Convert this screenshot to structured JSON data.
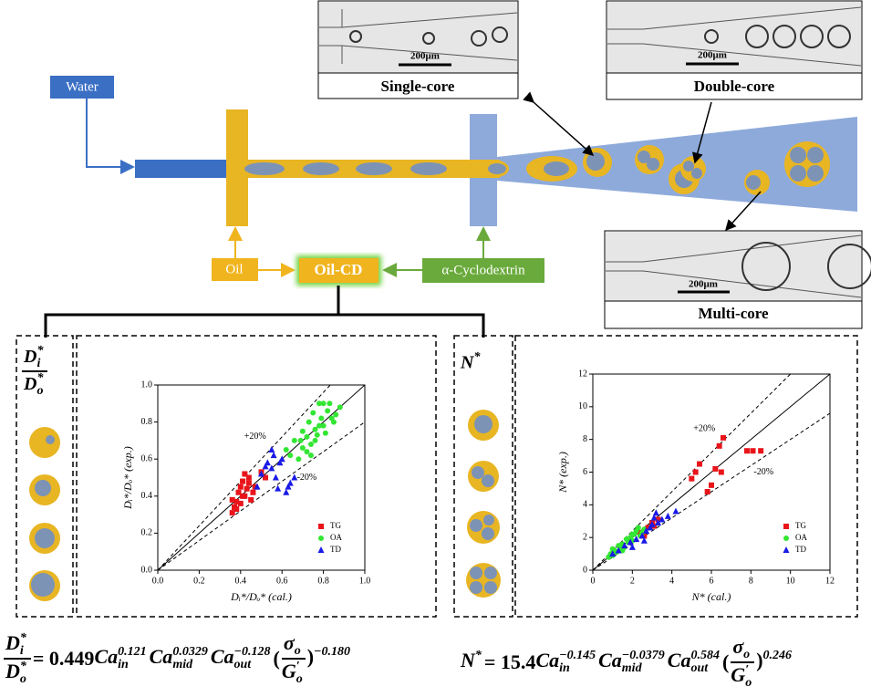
{
  "labels": {
    "water": "Water",
    "oil": "Oil",
    "oil_cd": "Oil-CD",
    "cyclodextrin": "α-Cyclodextrin"
  },
  "insets": [
    {
      "title": "Single-core",
      "scale": "200μm"
    },
    {
      "title": "Double-core",
      "scale": "200μm"
    },
    {
      "title": "Multi-core",
      "scale": "200μm"
    }
  ],
  "side_labels": [
    [
      {
        "num": {
          "base": "D",
          "sup": "*",
          "sub": "i"
        },
        "den": {
          "base": "D",
          "sup": "*",
          "sub": "o"
        }
      }
    ],
    [
      {
        "base": "N",
        "sup": "*"
      }
    ]
  ],
  "equations": [
    [
      {
        "num": {
          "base": "D",
          "sup": "*",
          "sub": "i"
        },
        "den": {
          "base": "D",
          "sup": "*",
          "sub": "o"
        }
      },
      {
        "text": "= 0.449"
      },
      {
        "base": "Ca",
        "sup": "0.121",
        "sub": "in"
      },
      {
        "base": "Ca",
        "sup": "0.0329",
        "sub": "mid"
      },
      {
        "base": "Ca",
        "sup": "−0.128",
        "sub": "out"
      },
      {
        "text": "("
      },
      {
        "num": {
          "base": "σ",
          "sub": "o"
        },
        "den": {
          "base": "G",
          "sup": "′",
          "sub": "o"
        }
      },
      {
        "base": ")",
        "sup": "−0.180"
      }
    ],
    [
      {
        "base": "N",
        "sup": "*"
      },
      {
        "text": "= 15.4"
      },
      {
        "base": "Ca",
        "sup": "−0.145",
        "sub": "in"
      },
      {
        "base": "Ca",
        "sup": "−0.0379",
        "sub": "mid"
      },
      {
        "base": "Ca",
        "sup": "0.584",
        "sub": "out"
      },
      {
        "text": "("
      },
      {
        "num": {
          "base": "σ",
          "sub": "o"
        },
        "den": {
          "base": "G",
          "sup": "′",
          "sub": "o"
        }
      },
      {
        "base": ")",
        "sup": "0.246"
      }
    ]
  ],
  "chart_data": [
    {
      "type": "scatter",
      "xlabel": "Dᵢ*/Dₒ* (cal.)",
      "ylabel": "Dᵢ*/Dₒ* (exp.)",
      "xlim": [
        0,
        1
      ],
      "ylim": [
        0,
        1
      ],
      "xticks": [
        {
          "value": 0,
          "label": "0.0"
        },
        {
          "value": 0.2,
          "label": "0.2"
        },
        {
          "value": 0.4,
          "label": "0.4"
        },
        {
          "value": 0.6,
          "label": "0.6"
        },
        {
          "value": 0.8,
          "label": "0.8"
        },
        {
          "value": 1,
          "label": "1.0"
        }
      ],
      "yticks": [
        {
          "value": 0,
          "label": "0.0"
        },
        {
          "value": 0.2,
          "label": "0.2"
        },
        {
          "value": 0.4,
          "label": "0.4"
        },
        {
          "value": 0.6,
          "label": "0.6"
        },
        {
          "value": 0.8,
          "label": "0.8"
        },
        {
          "value": 1,
          "label": "1.0"
        }
      ],
      "annotations": [
        "+20%",
        "-20%"
      ],
      "legend": "lower right",
      "series": [
        {
          "name": "TG",
          "color": "#e8141a",
          "marker": "square",
          "x": [
            0.36,
            0.37,
            0.38,
            0.39,
            0.4,
            0.4,
            0.41,
            0.42,
            0.43,
            0.44,
            0.45,
            0.46,
            0.38,
            0.42,
            0.47,
            0.5,
            0.52,
            0.36,
            0.44,
            0.41
          ],
          "values": [
            0.31,
            0.34,
            0.37,
            0.42,
            0.45,
            0.36,
            0.48,
            0.4,
            0.44,
            0.5,
            0.38,
            0.42,
            0.33,
            0.52,
            0.45,
            0.53,
            0.5,
            0.38,
            0.47,
            0.4
          ]
        },
        {
          "name": "OA",
          "color": "#33e633",
          "marker": "circle",
          "x": [
            0.62,
            0.64,
            0.66,
            0.68,
            0.7,
            0.7,
            0.72,
            0.73,
            0.74,
            0.75,
            0.76,
            0.77,
            0.78,
            0.79,
            0.8,
            0.8,
            0.82,
            0.83,
            0.84,
            0.85,
            0.86,
            0.88,
            0.72,
            0.76,
            0.81,
            0.69,
            0.78,
            0.74
          ],
          "values": [
            0.65,
            0.62,
            0.7,
            0.6,
            0.75,
            0.66,
            0.72,
            0.8,
            0.68,
            0.85,
            0.76,
            0.73,
            0.9,
            0.82,
            0.78,
            0.9,
            0.86,
            0.9,
            0.82,
            0.8,
            0.84,
            0.88,
            0.64,
            0.7,
            0.74,
            0.7,
            0.78,
            0.62
          ]
        },
        {
          "name": "TD",
          "color": "#1a1ae6",
          "marker": "triangle",
          "x": [
            0.48,
            0.5,
            0.52,
            0.53,
            0.55,
            0.56,
            0.57,
            0.58,
            0.6,
            0.62,
            0.64,
            0.66,
            0.55,
            0.59,
            0.63
          ],
          "values": [
            0.45,
            0.52,
            0.56,
            0.58,
            0.55,
            0.62,
            0.5,
            0.44,
            0.6,
            0.42,
            0.47,
            0.5,
            0.65,
            0.58,
            0.45
          ]
        }
      ]
    },
    {
      "type": "scatter",
      "xlabel": "N* (cal.)",
      "ylabel": "N* (exp.)",
      "xlim": [
        0,
        12
      ],
      "ylim": [
        0,
        12
      ],
      "xticks": [
        0,
        2,
        4,
        6,
        8,
        10,
        12
      ],
      "yticks": [
        0,
        2,
        4,
        6,
        8,
        10,
        12
      ],
      "annotations": [
        "+20%",
        "-20%"
      ],
      "legend": "lower right",
      "series": [
        {
          "name": "TG",
          "color": "#e8141a",
          "marker": "square",
          "x": [
            2.4,
            2.8,
            3.0,
            3.3,
            5.0,
            5.2,
            5.4,
            5.8,
            6.0,
            6.2,
            6.4,
            6.6,
            6.5,
            7.8,
            8.1,
            8.5,
            2.6,
            3.1
          ],
          "values": [
            2.3,
            2.6,
            2.9,
            3.1,
            5.6,
            6.0,
            6.5,
            4.8,
            5.2,
            6.2,
            7.6,
            8.1,
            6.0,
            7.3,
            7.3,
            7.3,
            2.1,
            2.7
          ]
        },
        {
          "name": "OA",
          "color": "#33e633",
          "marker": "circle",
          "x": [
            0.8,
            0.9,
            1.0,
            1.1,
            1.2,
            1.3,
            1.4,
            1.5,
            1.6,
            1.7,
            1.8,
            1.9,
            2.0,
            2.1,
            2.2,
            2.3,
            2.4,
            2.5,
            2.6,
            1.0,
            1.5,
            2.0
          ],
          "values": [
            0.8,
            1.0,
            0.9,
            1.2,
            1.1,
            1.5,
            1.3,
            1.6,
            1.4,
            1.9,
            1.7,
            2.0,
            1.8,
            2.2,
            2.4,
            2.6,
            2.1,
            2.3,
            2.5,
            1.3,
            1.2,
            2.2
          ]
        },
        {
          "name": "TD",
          "color": "#1a1ae6",
          "marker": "triangle",
          "x": [
            1.0,
            1.3,
            1.6,
            1.9,
            2.2,
            2.5,
            2.7,
            2.9,
            3.0,
            3.1,
            3.2,
            3.3,
            3.5,
            3.8,
            4.2,
            2.0,
            2.6
          ],
          "values": [
            1.0,
            1.2,
            1.5,
            1.7,
            1.9,
            2.1,
            2.4,
            2.6,
            2.8,
            3.2,
            3.5,
            2.9,
            3.1,
            3.3,
            3.6,
            1.4,
            1.8
          ]
        }
      ]
    }
  ]
}
